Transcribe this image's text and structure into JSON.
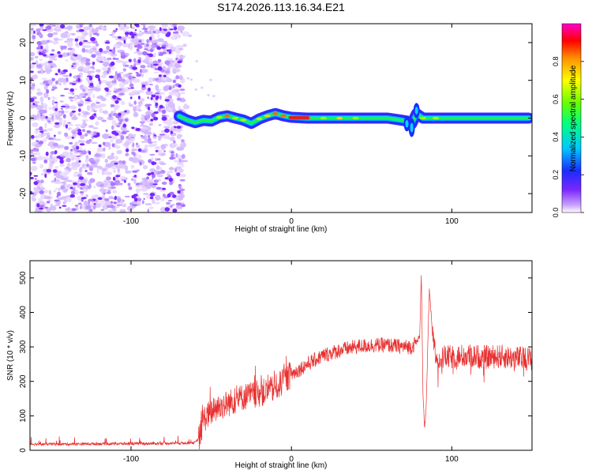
{
  "figure": {
    "title": "S174.2026.113.16.34.E21"
  },
  "colors": {
    "snr_line": "#e83030",
    "noise_purple": "#7a28ff",
    "ridge_red": "#e02020",
    "ridge_blue": "#1a2cff",
    "ridge_green": "#22ee44"
  },
  "chart_data": [
    {
      "type": "heatmap",
      "title": "S174.2026.113.16.34.E21",
      "xlabel": "Height of straight line (km)",
      "ylabel": "Frequency (Hz)",
      "xlim": [
        -163,
        150
      ],
      "ylim": [
        -25,
        25
      ],
      "xticks": [
        -100,
        0,
        100
      ],
      "xtick_labels": [
        "-100",
        "0",
        "100"
      ],
      "yticks": [
        -20,
        -10,
        0,
        10,
        20
      ],
      "ytick_labels": [
        "-20",
        "-10",
        "0",
        "10",
        "20"
      ],
      "colorbar": {
        "label": "Normalized spectral amplitude",
        "range": [
          0,
          1
        ],
        "ticks": [
          0.0,
          0.2,
          0.4,
          0.6,
          0.8
        ],
        "tick_labels": [
          "0.0",
          "0.2",
          "0.4",
          "0.6",
          "0.8"
        ]
      },
      "noise_region": {
        "x_range": [
          -163,
          -67
        ],
        "y_range": [
          -25,
          25
        ],
        "amplitude_range": [
          0.0,
          0.25
        ]
      },
      "ridge": {
        "x": [
          -70,
          -65,
          -60,
          -55,
          -50,
          -45,
          -40,
          -35,
          -30,
          -25,
          -20,
          -15,
          -10,
          -5,
          0,
          10,
          20,
          30,
          40,
          50,
          60,
          68,
          72,
          75,
          78,
          82,
          90,
          100,
          110,
          120,
          130,
          140,
          148
        ],
        "frequency": [
          0.5,
          -0.5,
          -1.2,
          -0.6,
          -0.8,
          0.2,
          0.6,
          0.0,
          -0.5,
          -1.4,
          -0.2,
          0.6,
          1.2,
          0.6,
          0.2,
          0.0,
          0.0,
          0.0,
          0.0,
          0.0,
          0.0,
          -0.5,
          -0.8,
          -1.5,
          1.2,
          0.0,
          0.0,
          0.0,
          0.0,
          0.0,
          0.0,
          0.0,
          0.0
        ],
        "amplitude": [
          0.3,
          0.45,
          0.5,
          0.55,
          0.55,
          0.6,
          0.8,
          0.6,
          0.65,
          0.55,
          0.65,
          0.7,
          0.85,
          0.9,
          1.0,
          0.8,
          0.6,
          0.7,
          0.6,
          0.55,
          0.5,
          0.5,
          0.4,
          0.35,
          0.5,
          0.6,
          0.6,
          0.55,
          0.55,
          0.5,
          0.55,
          0.5,
          0.45
        ]
      }
    },
    {
      "type": "line",
      "xlabel": "Height of straight line (km)",
      "ylabel": "SNR (10 * v/v)",
      "xlim": [
        -163,
        150
      ],
      "ylim": [
        0,
        550
      ],
      "xticks": [
        -100,
        0,
        100
      ],
      "xtick_labels": [
        "-100",
        "0",
        "100"
      ],
      "yticks": [
        0,
        100,
        200,
        300,
        400,
        500
      ],
      "ytick_labels": [
        "0",
        "100",
        "200",
        "300",
        "400",
        "500"
      ],
      "series": [
        {
          "x": [
            -163,
            -140,
            -120,
            -100,
            -80,
            -60,
            -57,
            -55,
            -50,
            -45,
            -40,
            -35,
            -30,
            -25,
            -20,
            -15,
            -10,
            -5,
            0,
            10,
            20,
            30,
            40,
            50,
            60,
            70,
            75,
            78,
            80,
            81,
            82,
            83,
            84,
            85,
            86,
            88,
            90,
            100,
            110,
            120,
            130,
            140,
            150
          ],
          "y": [
            18,
            18,
            19,
            19,
            20,
            22,
            40,
            90,
            110,
            125,
            135,
            145,
            155,
            160,
            165,
            170,
            180,
            200,
            220,
            250,
            275,
            290,
            300,
            305,
            305,
            300,
            300,
            315,
            330,
            520,
            170,
            60,
            120,
            300,
            470,
            330,
            270,
            270,
            275,
            270,
            272,
            268,
            265
          ]
        }
      ]
    }
  ]
}
